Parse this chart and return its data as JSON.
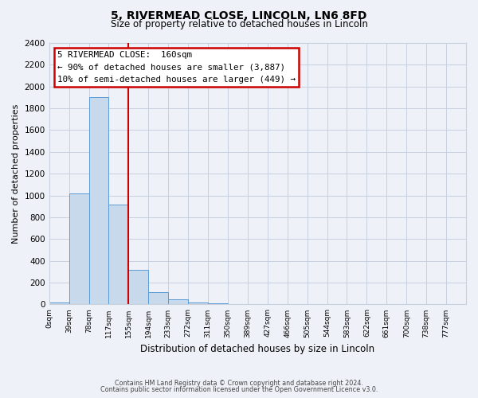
{
  "title": "5, RIVERMEAD CLOSE, LINCOLN, LN6 8FD",
  "subtitle": "Size of property relative to detached houses in Lincoln",
  "xlabel": "Distribution of detached houses by size in Lincoln",
  "ylabel": "Number of detached properties",
  "bar_labels": [
    "0sqm",
    "39sqm",
    "78sqm",
    "117sqm",
    "155sqm",
    "194sqm",
    "233sqm",
    "272sqm",
    "311sqm",
    "350sqm",
    "389sqm",
    "427sqm",
    "466sqm",
    "505sqm",
    "544sqm",
    "583sqm",
    "622sqm",
    "661sqm",
    "700sqm",
    "738sqm",
    "777sqm"
  ],
  "bar_values": [
    20,
    1020,
    1900,
    920,
    320,
    110,
    50,
    20,
    10,
    0,
    0,
    0,
    0,
    0,
    0,
    0,
    0,
    0,
    0,
    0,
    0
  ],
  "bar_color": "#c9d9ec",
  "bar_edge_color": "#5b9bd5",
  "ylim": [
    0,
    2400
  ],
  "yticks": [
    0,
    200,
    400,
    600,
    800,
    1000,
    1200,
    1400,
    1600,
    1800,
    2000,
    2200,
    2400
  ],
  "property_line_color": "#cc0000",
  "annotation_title": "5 RIVERMEAD CLOSE:  160sqm",
  "annotation_line1": "← 90% of detached houses are smaller (3,887)",
  "annotation_line2": "10% of semi-detached houses are larger (449) →",
  "annotation_box_edge": "#cc0000",
  "footer_line1": "Contains HM Land Registry data © Crown copyright and database right 2024.",
  "footer_line2": "Contains public sector information licensed under the Open Government Licence v3.0.",
  "background_color": "#eef2f8",
  "grid_color": "#c8d0de",
  "bin_width": 39,
  "n_bins": 21
}
